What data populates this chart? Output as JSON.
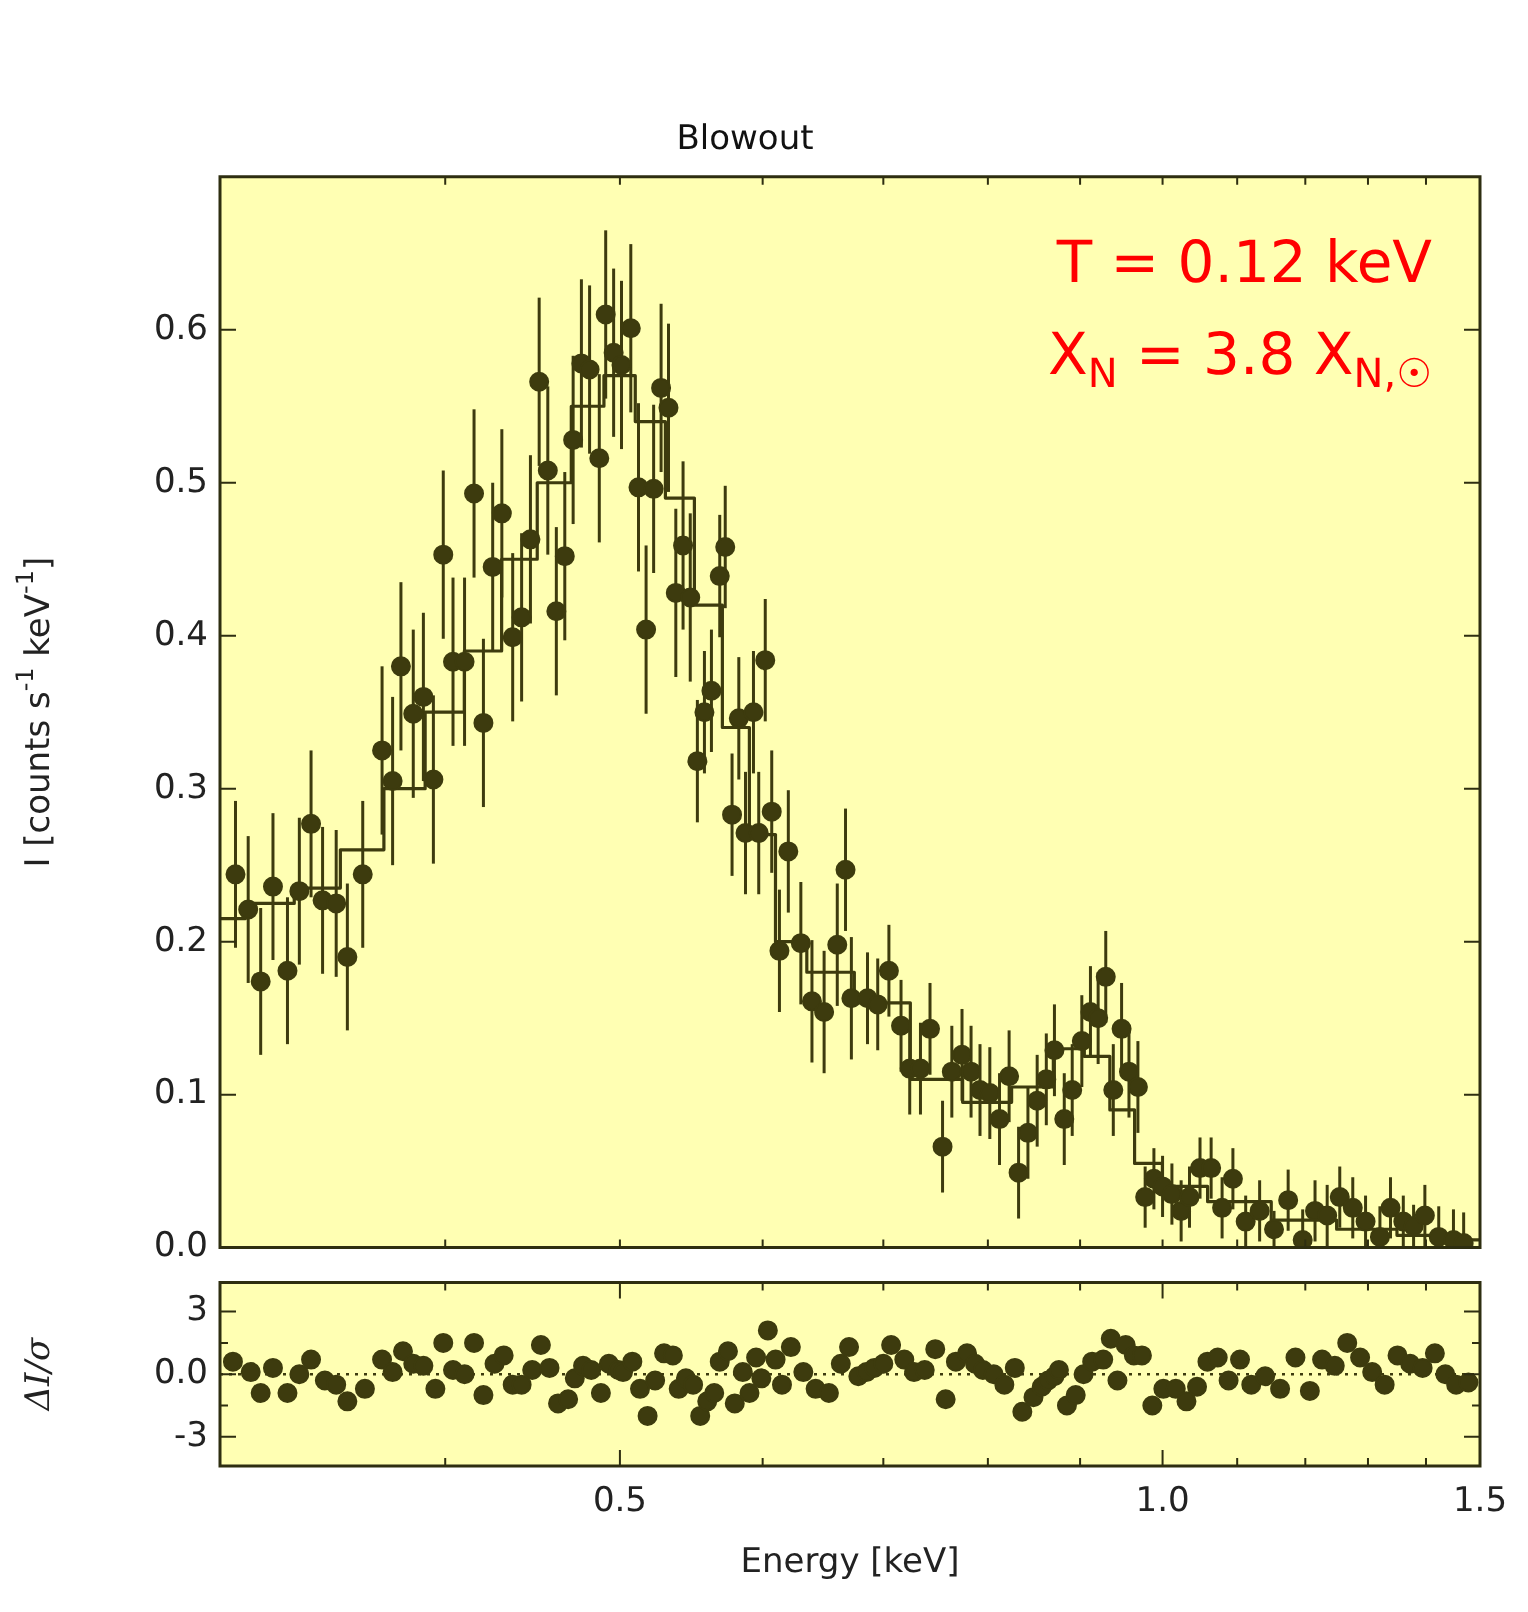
{
  "chart_data": [
    {
      "type": "scatter",
      "title": "Blowout",
      "ylabel": "I [counts s$^{-1}$ keV$^{-1}$]",
      "annotations": [
        "T = 0.12 keV",
        "X$_{N}$ = 3.8 X$_{N,☉}$"
      ],
      "log": "x",
      "tick_labels": "y",
      "xlim": [
        0.3,
        1.5
      ],
      "xticks": [
        {
          "value": 0.4,
          "label": null
        },
        {
          "value": 0.5,
          "label": null
        },
        {
          "value": 0.6,
          "label": null
        },
        {
          "value": 0.7,
          "label": null
        },
        {
          "value": 0.8,
          "label": null
        },
        {
          "value": 0.9,
          "label": null
        },
        {
          "value": 1,
          "label": null
        },
        {
          "value": 1.1,
          "label": null
        },
        {
          "value": 1.2,
          "label": null
        },
        {
          "value": 1.3,
          "label": null
        },
        {
          "value": 1.4,
          "label": null
        },
        {
          "value": 1.5,
          "label": null
        }
      ],
      "ylim": [
        0,
        0.7
      ],
      "yticks": [
        {
          "value": 0,
          "label": "0.0"
        },
        0.1,
        0.2,
        0.3,
        0.4,
        0.5,
        0.6
      ],
      "series": [
        {
          "marker": "circle",
          "color": "#3d3b0e",
          "x": [
            0.306,
            0.311,
            0.316,
            0.321,
            0.327,
            0.332,
            0.337,
            0.342,
            0.348,
            0.353,
            0.36,
            0.369,
            0.374,
            0.378,
            0.384,
            0.389,
            0.394,
            0.399,
            0.404,
            0.41,
            0.415,
            0.42,
            0.425,
            0.43,
            0.436,
            0.441,
            0.446,
            0.451,
            0.456,
            0.461,
            0.466,
            0.471,
            0.476,
            0.481,
            0.487,
            0.491,
            0.496,
            0.501,
            0.507,
            0.512,
            0.517,
            0.522,
            0.527,
            0.532,
            0.537,
            0.542,
            0.547,
            0.552,
            0.557,
            0.562,
            0.568,
            0.572,
            0.577,
            0.582,
            0.587,
            0.593,
            0.597,
            0.602,
            0.607,
            0.613,
            0.62,
            0.63,
            0.639,
            0.649,
            0.66,
            0.667,
            0.672,
            0.686,
            0.695,
            0.705,
            0.716,
            0.724,
            0.734,
            0.743,
            0.755,
            0.764,
            0.774,
            0.783,
            0.792,
            0.802,
            0.812,
            0.822,
            0.832,
            0.842,
            0.852,
            0.862,
            0.871,
            0.882,
            0.891,
            0.902,
            0.912,
            0.921,
            0.93,
            0.939,
            0.949,
            0.958,
            0.969,
            0.978,
            0.989,
            1.0,
            1.012,
            1.024,
            1.035,
            1.049,
            1.064,
            1.079,
            1.094,
            1.112,
            1.132,
            1.153,
            1.174,
            1.196,
            1.215,
            1.234,
            1.254,
            1.275,
            1.296,
            1.32,
            1.338,
            1.36,
            1.378,
            1.398,
            1.423,
            1.45,
            1.469
          ],
          "values": [
            0.244,
            0.221,
            0.174,
            0.236,
            0.181,
            0.233,
            0.277,
            0.227,
            0.225,
            0.19,
            0.244,
            0.325,
            0.305,
            0.38,
            0.349,
            0.36,
            0.306,
            0.453,
            0.383,
            0.383,
            0.493,
            0.343,
            0.445,
            0.48,
            0.399,
            0.412,
            0.463,
            0.566,
            0.508,
            0.416,
            0.452,
            0.528,
            0.578,
            0.574,
            0.516,
            0.61,
            0.585,
            0.577,
            0.601,
            0.497,
            0.404,
            0.496,
            0.562,
            0.549,
            0.428,
            0.459,
            0.425,
            0.318,
            0.35,
            0.364,
            0.439,
            0.458,
            0.283,
            0.346,
            0.271,
            0.35,
            0.271,
            0.384,
            0.285,
            0.194,
            0.259,
            0.199,
            0.161,
            0.154,
            0.198,
            0.247,
            0.163,
            0.163,
            0.159,
            0.181,
            0.145,
            0.117,
            0.117,
            0.143,
            0.066,
            0.115,
            0.126,
            0.115,
            0.103,
            0.101,
            0.084,
            0.112,
            0.049,
            0.075,
            0.096,
            0.11,
            0.129,
            0.084,
            0.103,
            0.135,
            0.154,
            0.15,
            0.177,
            0.103,
            0.143,
            0.115,
            0.105,
            0.033,
            0.045,
            0.04,
            0.035,
            0.024,
            0.033,
            0.052,
            0.052,
            0.026,
            0.045,
            0.017,
            0.024,
            0.012,
            0.031,
            0.005,
            0.024,
            0.021,
            0.033,
            0.026,
            0.017,
            0.007,
            0.026,
            0.017,
            0.014,
            0.021,
            0.007,
            0.005,
            0.003
          ],
          "errors": [
            0.048,
            0.048,
            0.048,
            0.048,
            0.048,
            0.048,
            0.048,
            0.048,
            0.048,
            0.048,
            0.048,
            0.055,
            0.055,
            0.055,
            0.055,
            0.055,
            0.055,
            0.055,
            0.055,
            0.055,
            0.055,
            0.055,
            0.055,
            0.055,
            0.055,
            0.055,
            0.055,
            0.055,
            0.055,
            0.055,
            0.055,
            0.055,
            0.055,
            0.055,
            0.055,
            0.055,
            0.055,
            0.055,
            0.055,
            0.055,
            0.055,
            0.055,
            0.055,
            0.055,
            0.055,
            0.055,
            0.055,
            0.04,
            0.04,
            0.04,
            0.04,
            0.04,
            0.04,
            0.04,
            0.04,
            0.04,
            0.04,
            0.04,
            0.04,
            0.04,
            0.04,
            0.04,
            0.04,
            0.04,
            0.04,
            0.04,
            0.04,
            0.03,
            0.03,
            0.03,
            0.03,
            0.03,
            0.03,
            0.03,
            0.03,
            0.03,
            0.03,
            0.03,
            0.03,
            0.03,
            0.03,
            0.03,
            0.03,
            0.03,
            0.03,
            0.03,
            0.03,
            0.03,
            0.03,
            0.03,
            0.03,
            0.03,
            0.03,
            0.03,
            0.03,
            0.03,
            0.03,
            0.02,
            0.02,
            0.02,
            0.02,
            0.02,
            0.02,
            0.02,
            0.02,
            0.02,
            0.02,
            0.017,
            0.02,
            0.012,
            0.02,
            [
              0,
              0.025
            ],
            0.02,
            0.02,
            0.02,
            0.02,
            0.017,
            [
              0,
              0.027
            ],
            0.02,
            0.017,
            0.014,
            0.02,
            [
              0,
              0.027
            ],
            [
              0,
              0.025
            ],
            [
              0,
              0.023
            ]
          ]
        },
        {
          "type": "step",
          "color": "#3d3b0e",
          "x": [
            0.3,
            0.32,
            0.34,
            0.36,
            0.38,
            0.4,
            0.42,
            0.44,
            0.46,
            0.48,
            0.5,
            0.52,
            0.54,
            0.56,
            0.58,
            0.6,
            0.62,
            0.65,
            0.7,
            0.75,
            0.8,
            0.85,
            0.89,
            0.92,
            0.95,
            0.98,
            1.02,
            1.1,
            1.2,
            1.3,
            1.4,
            1.5
          ],
          "values": [
            0.215,
            0.225,
            0.235,
            0.26,
            0.3,
            0.35,
            0.39,
            0.45,
            0.5,
            0.55,
            0.57,
            0.54,
            0.49,
            0.42,
            0.34,
            0.27,
            0.2,
            0.18,
            0.16,
            0.11,
            0.095,
            0.105,
            0.13,
            0.125,
            0.09,
            0.055,
            0.04,
            0.03,
            0.018,
            0.012,
            0.008,
            0.005
          ]
        }
      ]
    },
    {
      "type": "scatter",
      "xlabel": "Energy [keV]",
      "ylabel": "ΔI/σ",
      "log": "x",
      "marker": "circle",
      "xlim": [
        0.3,
        1.5
      ],
      "xticks": [
        {
          "value": 0.4,
          "label": null
        },
        {
          "value": 0.5,
          "label": "0.5"
        },
        {
          "value": 0.6,
          "label": null
        },
        {
          "value": 0.7,
          "label": null
        },
        {
          "value": 0.8,
          "label": null
        },
        {
          "value": 0.9,
          "label": null
        },
        {
          "value": 1,
          "label": "1.0"
        },
        {
          "value": 1.1,
          "label": null
        },
        {
          "value": 1.2,
          "label": null
        },
        {
          "value": 1.3,
          "label": null
        },
        {
          "value": 1.4,
          "label": null
        },
        1.5
      ],
      "ylim": [
        -4.4,
        4.4
      ],
      "yticks": [
        -3,
        {
          "value": -1.5,
          "label": null
        },
        {
          "value": 0,
          "label": "0.0"
        },
        {
          "value": 1.5,
          "label": null
        },
        3
      ],
      "ref_lines": [
        {
          "axis": "y",
          "value": 0,
          "line_style": "dotted",
          "color": "#3d3b0e"
        }
      ],
      "series": [
        {
          "color": "#3d3b0e",
          "x": [
            0.305,
            0.312,
            0.316,
            0.321,
            0.327,
            0.332,
            0.337,
            0.343,
            0.348,
            0.353,
            0.361,
            0.369,
            0.374,
            0.379,
            0.384,
            0.389,
            0.395,
            0.399,
            0.404,
            0.41,
            0.415,
            0.42,
            0.426,
            0.431,
            0.436,
            0.441,
            0.447,
            0.452,
            0.457,
            0.462,
            0.468,
            0.472,
            0.477,
            0.482,
            0.488,
            0.493,
            0.499,
            0.502,
            0.508,
            0.513,
            0.518,
            0.523,
            0.529,
            0.535,
            0.539,
            0.544,
            0.549,
            0.554,
            0.559,
            0.564,
            0.568,
            0.574,
            0.579,
            0.585,
            0.59,
            0.595,
            0.599,
            0.604,
            0.61,
            0.615,
            0.622,
            0.632,
            0.642,
            0.653,
            0.663,
            0.67,
            0.678,
            0.685,
            0.692,
            0.7,
            0.707,
            0.719,
            0.728,
            0.738,
            0.748,
            0.758,
            0.768,
            0.779,
            0.787,
            0.795,
            0.806,
            0.817,
            0.828,
            0.836,
            0.848,
            0.857,
            0.864,
            0.871,
            0.876,
            0.885,
            0.895,
            0.904,
            0.914,
            0.927,
            0.936,
            0.944,
            0.954,
            0.964,
            0.974,
            0.987,
            1.001,
            1.017,
            1.031,
            1.045,
            1.059,
            1.073,
            1.088,
            1.104,
            1.12,
            1.14,
            1.162,
            1.185,
            1.207,
            1.226,
            1.246,
            1.266,
            1.287,
            1.307,
            1.328,
            1.35,
            1.372,
            1.394,
            1.416,
            1.435,
            1.455,
            1.478
          ],
          "values": [
            0.6,
            0.1,
            -0.9,
            0.3,
            -0.9,
            0.0,
            0.7,
            -0.3,
            -0.5,
            -1.3,
            -0.7,
            0.7,
            0.1,
            1.1,
            0.5,
            0.4,
            -0.7,
            1.5,
            0.2,
            0.0,
            1.5,
            -1.0,
            0.5,
            0.9,
            -0.5,
            -0.5,
            0.2,
            1.4,
            0.3,
            -1.4,
            -1.2,
            -0.2,
            0.4,
            0.2,
            -0.9,
            0.5,
            0.2,
            0.1,
            0.6,
            -0.7,
            -2.0,
            -0.3,
            1.0,
            0.9,
            -0.7,
            -0.2,
            -0.5,
            -2.0,
            -1.3,
            -0.9,
            0.6,
            1.1,
            -1.4,
            0.1,
            -0.9,
            0.8,
            -0.2,
            2.1,
            0.7,
            -0.5,
            1.3,
            0.1,
            -0.7,
            -0.9,
            0.5,
            1.3,
            -0.1,
            0.1,
            0.3,
            0.5,
            1.4,
            0.7,
            0.1,
            0.2,
            1.2,
            -1.2,
            0.6,
            1.0,
            0.5,
            0.2,
            0.0,
            -0.5,
            0.3,
            -1.8,
            -1.1,
            -0.6,
            -0.3,
            -0.1,
            0.2,
            -1.5,
            -1.0,
            0.0,
            0.6,
            0.7,
            1.7,
            -0.3,
            1.4,
            0.9,
            0.9,
            -1.5,
            -0.7,
            -0.7,
            -1.3,
            -0.6,
            0.6,
            0.8,
            -0.3,
            0.7,
            -0.5,
            -0.1,
            -0.7,
            0.8,
            -0.8,
            0.7,
            0.4,
            1.5,
            0.8,
            0.1,
            -0.5,
            0.9,
            0.5,
            0.3,
            1.0,
            0.0,
            -0.5,
            -0.4
          ]
        }
      ]
    }
  ]
}
